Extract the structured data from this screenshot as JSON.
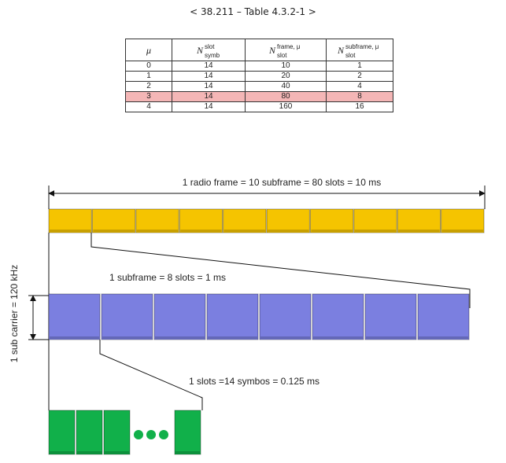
{
  "header": {
    "title": "< 38.211 – Table 4.3.2-1 >"
  },
  "table": {
    "columns": [
      "μ",
      "N",
      "N",
      "N"
    ],
    "column_super": [
      "",
      "slot",
      "frame, μ",
      "subframe, μ"
    ],
    "column_sub": [
      "",
      "symb",
      "slot",
      "slot"
    ],
    "rows": [
      [
        "0",
        "14",
        "10",
        "1"
      ],
      [
        "1",
        "14",
        "20",
        "2"
      ],
      [
        "2",
        "14",
        "40",
        "4"
      ],
      [
        "3",
        "14",
        "80",
        "8"
      ],
      [
        "4",
        "14",
        "160",
        "16"
      ]
    ],
    "highlight_row": 3
  },
  "diagram": {
    "frame_label": "1 radio frame = 10 subframe = 80 slots = 10 ms",
    "subframe_label": "1 subframe = 8 slots = 1 ms",
    "slot_label": "1 slots =14 symbos = 0.125 ms",
    "subcarrier_label": "1 sub carrier = 120 kHz",
    "subframe_count": 10,
    "slot_count": 8,
    "symbol_count_shown": 4,
    "colors": {
      "subframe": "#f5c400",
      "slot": "#7b7fe0",
      "symbol": "#11b04a",
      "highlight": "#f4b6b6"
    }
  }
}
